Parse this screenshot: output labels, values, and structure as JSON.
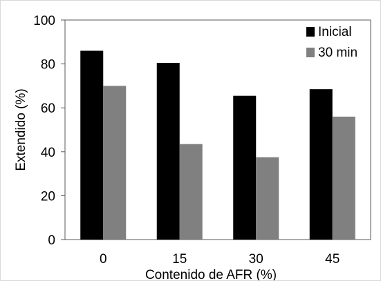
{
  "chart_data": {
    "type": "bar",
    "title": "",
    "xlabel": "Contenido de AFR (%)",
    "ylabel": "Extendido (%)",
    "categories": [
      "0",
      "15",
      "30",
      "45"
    ],
    "ylim": [
      0,
      100
    ],
    "yticks": [
      "0",
      "20",
      "40",
      "60",
      "80",
      "100"
    ],
    "grid": false,
    "legend_position": "top-right",
    "series": [
      {
        "name": "Inicial",
        "color": "#000000",
        "values": [
          86,
          80.5,
          65.5,
          68.5
        ]
      },
      {
        "name": "30 min",
        "color": "#808080",
        "values": [
          70,
          43.5,
          37.5,
          56
        ]
      }
    ]
  }
}
